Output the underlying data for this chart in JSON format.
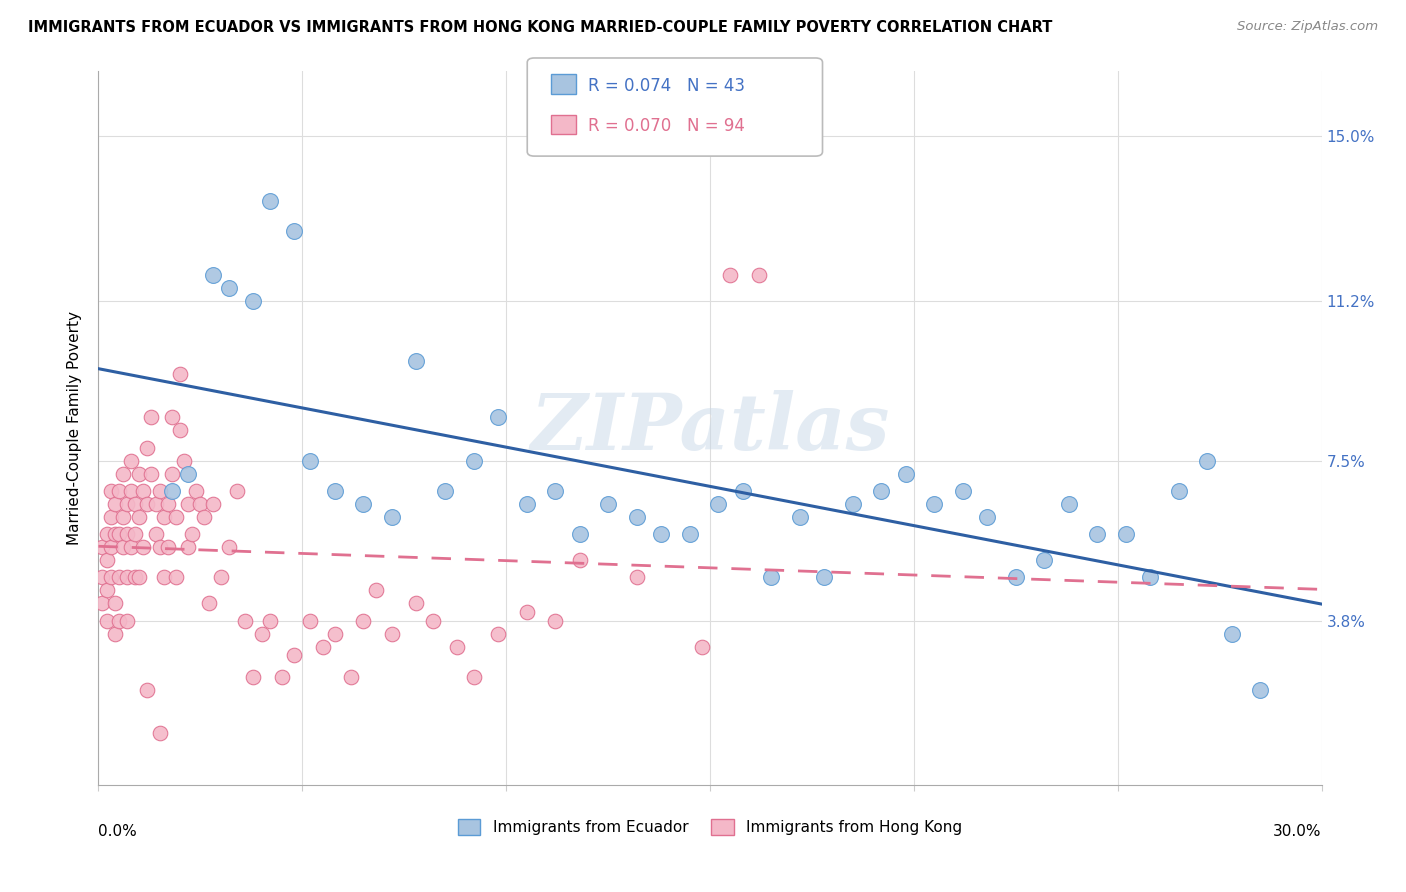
{
  "title": "IMMIGRANTS FROM ECUADOR VS IMMIGRANTS FROM HONG KONG MARRIED-COUPLE FAMILY POVERTY CORRELATION CHART",
  "source": "Source: ZipAtlas.com",
  "ylabel": "Married-Couple Family Poverty",
  "xlim": [
    0.0,
    0.3
  ],
  "ylim": [
    0.0,
    0.165
  ],
  "yticks": [
    0.038,
    0.075,
    0.112,
    0.15
  ],
  "ytick_labels": [
    "3.8%",
    "7.5%",
    "11.2%",
    "15.0%"
  ],
  "xticks": [
    0.0,
    0.05,
    0.1,
    0.15,
    0.2,
    0.25,
    0.3
  ],
  "ecuador_color": "#a8c4e0",
  "ecuador_edge": "#5b9bd5",
  "hong_kong_color": "#f4b8c8",
  "hong_kong_edge": "#e07090",
  "legend_ecuador_R": "0.074",
  "legend_ecuador_N": "43",
  "legend_hk_R": "0.070",
  "legend_hk_N": "94",
  "ecuador_line_color": "#2e5fa3",
  "hong_kong_line_color": "#e07090",
  "watermark": "ZIPatlas",
  "ecuador_points_x": [
    0.018,
    0.022,
    0.028,
    0.032,
    0.038,
    0.042,
    0.048,
    0.052,
    0.058,
    0.065,
    0.072,
    0.078,
    0.085,
    0.092,
    0.098,
    0.105,
    0.112,
    0.118,
    0.125,
    0.132,
    0.138,
    0.145,
    0.152,
    0.158,
    0.165,
    0.172,
    0.178,
    0.185,
    0.192,
    0.198,
    0.205,
    0.212,
    0.218,
    0.225,
    0.232,
    0.238,
    0.245,
    0.252,
    0.258,
    0.265,
    0.272,
    0.278,
    0.285
  ],
  "ecuador_points_y": [
    0.068,
    0.072,
    0.118,
    0.115,
    0.112,
    0.135,
    0.128,
    0.075,
    0.068,
    0.065,
    0.062,
    0.098,
    0.068,
    0.075,
    0.085,
    0.065,
    0.068,
    0.058,
    0.065,
    0.062,
    0.058,
    0.058,
    0.065,
    0.068,
    0.048,
    0.062,
    0.048,
    0.065,
    0.068,
    0.072,
    0.065,
    0.068,
    0.062,
    0.048,
    0.052,
    0.065,
    0.058,
    0.058,
    0.048,
    0.068,
    0.075,
    0.035,
    0.022
  ],
  "hk_points_x": [
    0.001,
    0.001,
    0.001,
    0.002,
    0.002,
    0.002,
    0.002,
    0.003,
    0.003,
    0.003,
    0.003,
    0.004,
    0.004,
    0.004,
    0.004,
    0.005,
    0.005,
    0.005,
    0.005,
    0.006,
    0.006,
    0.006,
    0.007,
    0.007,
    0.007,
    0.007,
    0.008,
    0.008,
    0.008,
    0.009,
    0.009,
    0.009,
    0.01,
    0.01,
    0.01,
    0.011,
    0.011,
    0.012,
    0.012,
    0.013,
    0.013,
    0.014,
    0.014,
    0.015,
    0.015,
    0.016,
    0.016,
    0.017,
    0.017,
    0.018,
    0.018,
    0.019,
    0.019,
    0.02,
    0.02,
    0.021,
    0.022,
    0.022,
    0.023,
    0.024,
    0.025,
    0.026,
    0.027,
    0.028,
    0.03,
    0.032,
    0.034,
    0.036,
    0.038,
    0.04,
    0.042,
    0.045,
    0.048,
    0.052,
    0.055,
    0.058,
    0.062,
    0.065,
    0.068,
    0.072,
    0.078,
    0.082,
    0.088,
    0.092,
    0.098,
    0.105,
    0.112,
    0.118,
    0.132,
    0.148,
    0.155,
    0.162,
    0.012,
    0.015
  ],
  "hk_points_y": [
    0.048,
    0.042,
    0.055,
    0.058,
    0.052,
    0.045,
    0.038,
    0.062,
    0.055,
    0.048,
    0.068,
    0.065,
    0.058,
    0.042,
    0.035,
    0.068,
    0.058,
    0.048,
    0.038,
    0.072,
    0.062,
    0.055,
    0.065,
    0.058,
    0.048,
    0.038,
    0.075,
    0.068,
    0.055,
    0.065,
    0.058,
    0.048,
    0.072,
    0.062,
    0.048,
    0.068,
    0.055,
    0.078,
    0.065,
    0.085,
    0.072,
    0.065,
    0.058,
    0.068,
    0.055,
    0.062,
    0.048,
    0.065,
    0.055,
    0.085,
    0.072,
    0.062,
    0.048,
    0.095,
    0.082,
    0.075,
    0.065,
    0.055,
    0.058,
    0.068,
    0.065,
    0.062,
    0.042,
    0.065,
    0.048,
    0.055,
    0.068,
    0.038,
    0.025,
    0.035,
    0.038,
    0.025,
    0.03,
    0.038,
    0.032,
    0.035,
    0.025,
    0.038,
    0.045,
    0.035,
    0.042,
    0.038,
    0.032,
    0.025,
    0.035,
    0.04,
    0.038,
    0.052,
    0.048,
    0.032,
    0.118,
    0.118,
    0.022,
    0.012
  ]
}
